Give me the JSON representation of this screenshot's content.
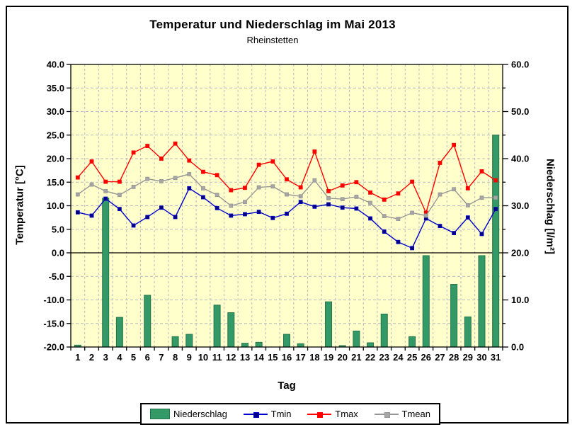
{
  "chart_data": {
    "type": "bar+line combo",
    "title": "Temperatur und Niederschlag im Mai 2013",
    "subtitle": "Rheinstetten",
    "xlabel": "Tag",
    "ylabel_left": "Temperatur [°C]",
    "ylabel_right": "Niederschlag [l/m²]",
    "plot_bg": "#FFFFCC",
    "grid": true,
    "legend_position": "bottom",
    "axes": {
      "left": {
        "min": -20,
        "max": 40,
        "tick_step": 5,
        "label_step": 5,
        "zero_line": true
      },
      "right": {
        "min": 0,
        "max": 60,
        "tick_step": 5,
        "label_step": 10
      }
    },
    "categories": [
      "1",
      "2",
      "3",
      "4",
      "5",
      "6",
      "7",
      "8",
      "9",
      "10",
      "11",
      "12",
      "13",
      "14",
      "15",
      "16",
      "17",
      "18",
      "19",
      "20",
      "21",
      "22",
      "23",
      "24",
      "25",
      "26",
      "27",
      "28",
      "29",
      "30",
      "31"
    ],
    "series": [
      {
        "name": "Niederschlag",
        "type": "bar",
        "axis": "right",
        "color": "#339966",
        "border_color": "#26734D",
        "values": [
          0.4,
          0,
          31.6,
          6.3,
          0,
          11.0,
          0,
          2.2,
          2.7,
          0,
          8.9,
          7.3,
          0.8,
          1.0,
          0,
          2.7,
          0.7,
          0,
          9.6,
          0.3,
          3.4,
          0.9,
          7.0,
          0,
          2.2,
          19.4,
          0,
          13.3,
          6.4,
          19.4,
          45.0
        ]
      },
      {
        "name": "Tmin",
        "type": "line",
        "axis": "left",
        "color": "#0000CC",
        "marker_color": "#000080",
        "values": [
          8.6,
          7.9,
          11.5,
          9.3,
          5.8,
          7.6,
          9.6,
          7.6,
          13.7,
          11.8,
          9.5,
          7.9,
          8.2,
          8.7,
          7.4,
          8.3,
          10.8,
          9.8,
          10.3,
          9.6,
          9.4,
          7.3,
          4.5,
          2.3,
          1.0,
          7.3,
          5.7,
          4.2,
          7.5,
          4.0,
          9.3
        ]
      },
      {
        "name": "Tmax",
        "type": "line",
        "axis": "left",
        "color": "#FF0000",
        "marker_color": "#FF0000",
        "values": [
          16.0,
          19.4,
          15.1,
          15.1,
          21.3,
          22.7,
          20.0,
          23.2,
          19.6,
          17.2,
          16.5,
          13.3,
          13.8,
          18.7,
          19.4,
          15.6,
          13.9,
          21.5,
          13.1,
          14.3,
          15.0,
          12.8,
          11.3,
          12.6,
          15.1,
          8.5,
          19.1,
          22.9,
          13.7,
          17.3,
          15.4
        ]
      },
      {
        "name": "Tmean",
        "type": "line",
        "axis": "left",
        "color": "#969696",
        "marker_color": "#A6A6A6",
        "values": [
          12.4,
          14.5,
          13.1,
          12.3,
          14.0,
          15.7,
          15.2,
          15.9,
          16.7,
          13.7,
          12.3,
          10.0,
          10.8,
          13.9,
          14.1,
          12.4,
          12.0,
          15.4,
          11.6,
          11.4,
          11.9,
          10.6,
          7.8,
          7.2,
          8.5,
          7.9,
          12.4,
          13.5,
          10.1,
          11.7,
          11.7
        ]
      }
    ]
  }
}
